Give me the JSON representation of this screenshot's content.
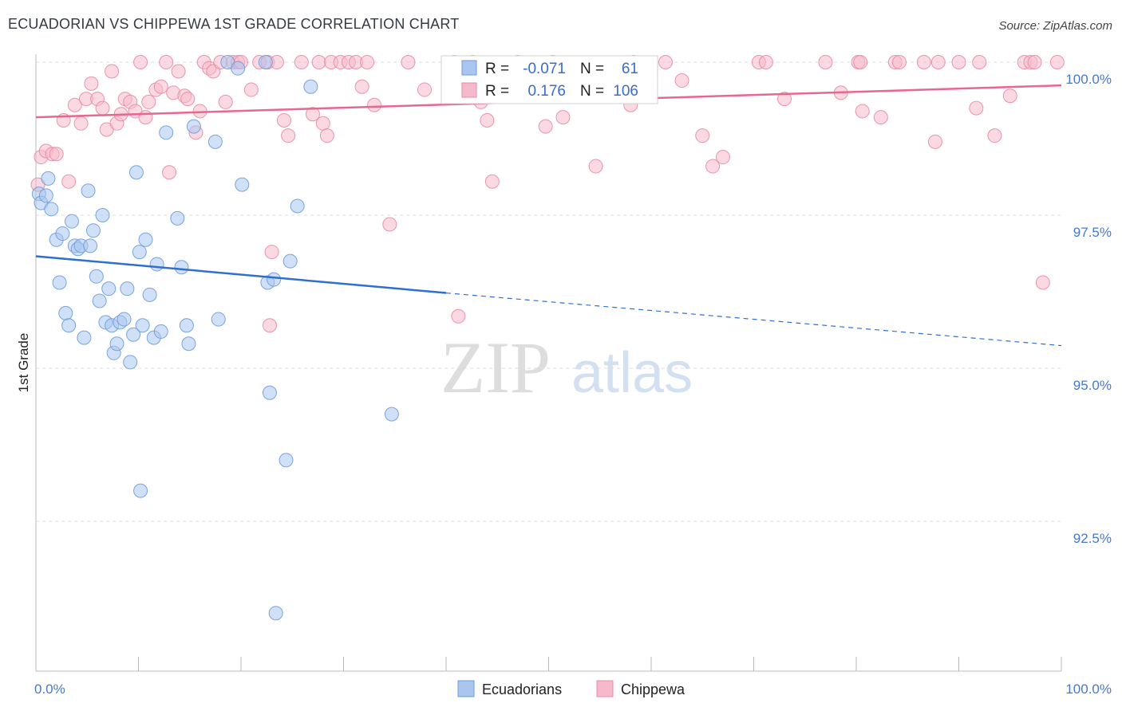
{
  "title": "ECUADORIAN VS CHIPPEWA 1ST GRADE CORRELATION CHART",
  "source": "Source: ZipAtlas.com",
  "watermark": {
    "zip": "ZIP",
    "atlas": "atlas"
  },
  "colors": {
    "blue_fill": "#a9c6ef",
    "blue_stroke": "#6e9bdb",
    "blue_line": "#2f6fd0",
    "pink_fill": "#f6b9cb",
    "pink_stroke": "#e88aa6",
    "pink_line": "#e8678f",
    "axis_text": "#4a78c8",
    "grid": "#dddddd"
  },
  "legend": {
    "r_label": "R =",
    "n_label": "N =",
    "rows": [
      {
        "series": "Ecuadorians",
        "r": "-0.071",
        "n": "61"
      },
      {
        "series": "Chippewa",
        "r": "0.176",
        "n": "106"
      }
    ]
  },
  "chart_data": {
    "type": "scatter",
    "title": "ECUADORIAN VS CHIPPEWA 1ST GRADE CORRELATION CHART",
    "xlabel": "",
    "ylabel": "1st Grade",
    "xlim": [
      0,
      100
    ],
    "ylim": [
      90.0,
      100.3
    ],
    "x_tick_labels": [
      "0.0%",
      "100.0%"
    ],
    "y_ticks": [
      92.5,
      95.0,
      97.5,
      100.0
    ],
    "y_tick_labels": [
      "92.5%",
      "95.0%",
      "97.5%",
      "100.0%"
    ],
    "grid": true,
    "legend_position": "bottom",
    "series": [
      {
        "name": "Ecuadorians",
        "trend": {
          "x": [
            0,
            40,
            100
          ],
          "y": [
            96.83,
            96.23,
            95.37
          ],
          "solid_until": 40
        },
        "points": [
          [
            0.3,
            97.85
          ],
          [
            0.5,
            97.7
          ],
          [
            1.0,
            97.82
          ],
          [
            1.5,
            97.6
          ],
          [
            2.0,
            97.1
          ],
          [
            2.3,
            96.4
          ],
          [
            2.6,
            97.2
          ],
          [
            2.9,
            95.9
          ],
          [
            3.2,
            95.7
          ],
          [
            3.5,
            97.4
          ],
          [
            3.8,
            97.0
          ],
          [
            4.1,
            96.95
          ],
          [
            4.4,
            97.0
          ],
          [
            4.7,
            95.5
          ],
          [
            5.1,
            97.9
          ],
          [
            5.3,
            97.0
          ],
          [
            5.6,
            97.25
          ],
          [
            5.9,
            96.5
          ],
          [
            6.2,
            96.1
          ],
          [
            6.5,
            97.5
          ],
          [
            6.8,
            95.75
          ],
          [
            7.1,
            96.3
          ],
          [
            7.4,
            95.7
          ],
          [
            7.6,
            95.25
          ],
          [
            7.9,
            95.4
          ],
          [
            8.2,
            95.75
          ],
          [
            8.6,
            95.8
          ],
          [
            8.9,
            96.3
          ],
          [
            9.2,
            95.1
          ],
          [
            9.5,
            95.55
          ],
          [
            9.8,
            98.2
          ],
          [
            10.1,
            96.9
          ],
          [
            10.4,
            95.7
          ],
          [
            10.7,
            97.1
          ],
          [
            11.1,
            96.2
          ],
          [
            11.5,
            95.5
          ],
          [
            11.8,
            96.7
          ],
          [
            12.2,
            95.6
          ],
          [
            12.7,
            98.85
          ],
          [
            13.8,
            97.45
          ],
          [
            14.2,
            96.65
          ],
          [
            14.7,
            95.7
          ],
          [
            14.9,
            95.4
          ],
          [
            15.4,
            98.95
          ],
          [
            17.5,
            98.7
          ],
          [
            17.8,
            95.8
          ],
          [
            18.7,
            100.0
          ],
          [
            19.7,
            99.9
          ],
          [
            20.1,
            98.0
          ],
          [
            22.4,
            100.0
          ],
          [
            22.8,
            94.6
          ],
          [
            22.6,
            96.4
          ],
          [
            23.2,
            96.45
          ],
          [
            23.4,
            91.0
          ],
          [
            24.4,
            93.5
          ],
          [
            24.8,
            96.75
          ],
          [
            25.5,
            97.65
          ],
          [
            26.8,
            99.6
          ],
          [
            10.2,
            93.0
          ],
          [
            34.7,
            94.25
          ],
          [
            1.2,
            98.1
          ]
        ]
      },
      {
        "name": "Chippewa",
        "trend": {
          "x": [
            0,
            100
          ],
          "y": [
            99.1,
            99.62
          ],
          "solid_until": 100
        },
        "points": [
          [
            0.2,
            98.0
          ],
          [
            0.5,
            98.45
          ],
          [
            1.0,
            98.55
          ],
          [
            1.6,
            98.5
          ],
          [
            2.0,
            98.5
          ],
          [
            2.7,
            99.05
          ],
          [
            3.2,
            98.05
          ],
          [
            3.8,
            99.3
          ],
          [
            4.4,
            99.0
          ],
          [
            4.9,
            99.4
          ],
          [
            5.4,
            99.65
          ],
          [
            6.0,
            99.4
          ],
          [
            6.5,
            99.25
          ],
          [
            6.9,
            98.9
          ],
          [
            7.4,
            99.85
          ],
          [
            7.9,
            99.0
          ],
          [
            8.3,
            99.15
          ],
          [
            8.7,
            99.4
          ],
          [
            9.2,
            99.35
          ],
          [
            9.7,
            99.2
          ],
          [
            10.2,
            100.0
          ],
          [
            10.7,
            99.1
          ],
          [
            11.0,
            99.35
          ],
          [
            11.7,
            99.55
          ],
          [
            12.2,
            99.6
          ],
          [
            12.7,
            100.0
          ],
          [
            13.0,
            98.2
          ],
          [
            13.4,
            99.5
          ],
          [
            13.9,
            99.85
          ],
          [
            14.5,
            99.45
          ],
          [
            14.8,
            99.4
          ],
          [
            15.6,
            98.85
          ],
          [
            16.0,
            99.2
          ],
          [
            16.4,
            100.0
          ],
          [
            16.9,
            99.9
          ],
          [
            17.3,
            99.85
          ],
          [
            18.0,
            100.0
          ],
          [
            18.5,
            99.35
          ],
          [
            19.2,
            100.0
          ],
          [
            19.7,
            100.0
          ],
          [
            20.0,
            100.0
          ],
          [
            21.0,
            99.55
          ],
          [
            21.8,
            100.0
          ],
          [
            22.6,
            100.0
          ],
          [
            22.8,
            95.7
          ],
          [
            23.0,
            96.9
          ],
          [
            23.5,
            100.0
          ],
          [
            24.2,
            99.05
          ],
          [
            24.6,
            98.8
          ],
          [
            25.9,
            100.0
          ],
          [
            27.0,
            99.15
          ],
          [
            27.6,
            100.0
          ],
          [
            28.0,
            99.0
          ],
          [
            28.4,
            98.8
          ],
          [
            28.8,
            100.0
          ],
          [
            29.7,
            100.0
          ],
          [
            30.5,
            100.0
          ],
          [
            31.2,
            100.0
          ],
          [
            31.8,
            99.6
          ],
          [
            32.3,
            100.0
          ],
          [
            33.0,
            99.3
          ],
          [
            34.5,
            97.35
          ],
          [
            36.3,
            100.0
          ],
          [
            37.9,
            99.55
          ],
          [
            40.8,
            100.0
          ],
          [
            41.2,
            95.85
          ],
          [
            42.6,
            100.0
          ],
          [
            43.4,
            99.35
          ],
          [
            44.0,
            99.05
          ],
          [
            44.5,
            98.05
          ],
          [
            47.0,
            100.0
          ],
          [
            49.7,
            98.95
          ],
          [
            50.4,
            100.0
          ],
          [
            51.4,
            99.1
          ],
          [
            54.6,
            98.3
          ],
          [
            58.0,
            99.3
          ],
          [
            58.3,
            100.0
          ],
          [
            61.4,
            100.0
          ],
          [
            63.0,
            99.7
          ],
          [
            65.0,
            98.8
          ],
          [
            66.0,
            98.3
          ],
          [
            67.0,
            98.45
          ],
          [
            70.5,
            100.0
          ],
          [
            71.2,
            100.0
          ],
          [
            73.0,
            99.4
          ],
          [
            77.0,
            100.0
          ],
          [
            78.5,
            99.5
          ],
          [
            80.2,
            100.0
          ],
          [
            80.4,
            100.0
          ],
          [
            80.6,
            99.2
          ],
          [
            82.4,
            99.1
          ],
          [
            83.8,
            100.0
          ],
          [
            84.2,
            100.0
          ],
          [
            86.6,
            100.0
          ],
          [
            87.7,
            98.7
          ],
          [
            88.0,
            100.0
          ],
          [
            90.0,
            100.0
          ],
          [
            91.7,
            99.25
          ],
          [
            92.0,
            100.0
          ],
          [
            93.5,
            98.8
          ],
          [
            95.0,
            99.45
          ],
          [
            96.4,
            100.0
          ],
          [
            97.0,
            100.0
          ],
          [
            97.4,
            100.0
          ],
          [
            98.2,
            96.4
          ],
          [
            99.6,
            100.0
          ]
        ]
      }
    ]
  }
}
